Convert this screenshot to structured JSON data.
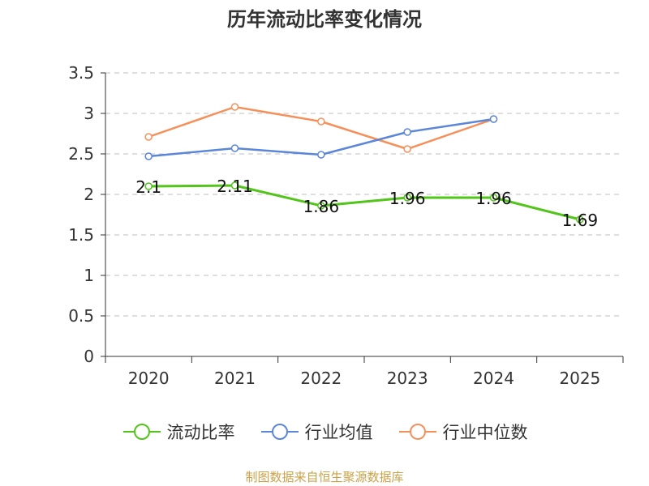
{
  "chart_data": {
    "type": "line",
    "title": "历年流动比率变化情况",
    "categories": [
      "2020",
      "2021",
      "2022",
      "2023",
      "2024",
      "2025"
    ],
    "ylim": [
      0,
      3.5
    ],
    "yticks": [
      "0",
      "0.5",
      "1",
      "1.5",
      "2",
      "2.5",
      "3",
      "3.5"
    ],
    "grid": true,
    "legend_position": "bottom",
    "series": [
      {
        "name": "流动比率",
        "color": "#52c41a",
        "values": [
          2.1,
          2.11,
          1.86,
          1.96,
          1.96,
          1.69
        ],
        "labels": [
          "2.1",
          "2.11",
          "1.86",
          "1.96",
          "1.96",
          "1.69"
        ]
      },
      {
        "name": "行业均值",
        "color": "#5b86d9",
        "values": [
          2.47,
          2.57,
          2.49,
          2.77,
          2.93,
          null
        ]
      },
      {
        "name": "行业中位数",
        "color": "#f6905a",
        "values": [
          2.71,
          3.08,
          2.9,
          2.56,
          2.93,
          null
        ]
      }
    ]
  },
  "footer": {
    "source": "制图数据来自恒生聚源数据库"
  }
}
